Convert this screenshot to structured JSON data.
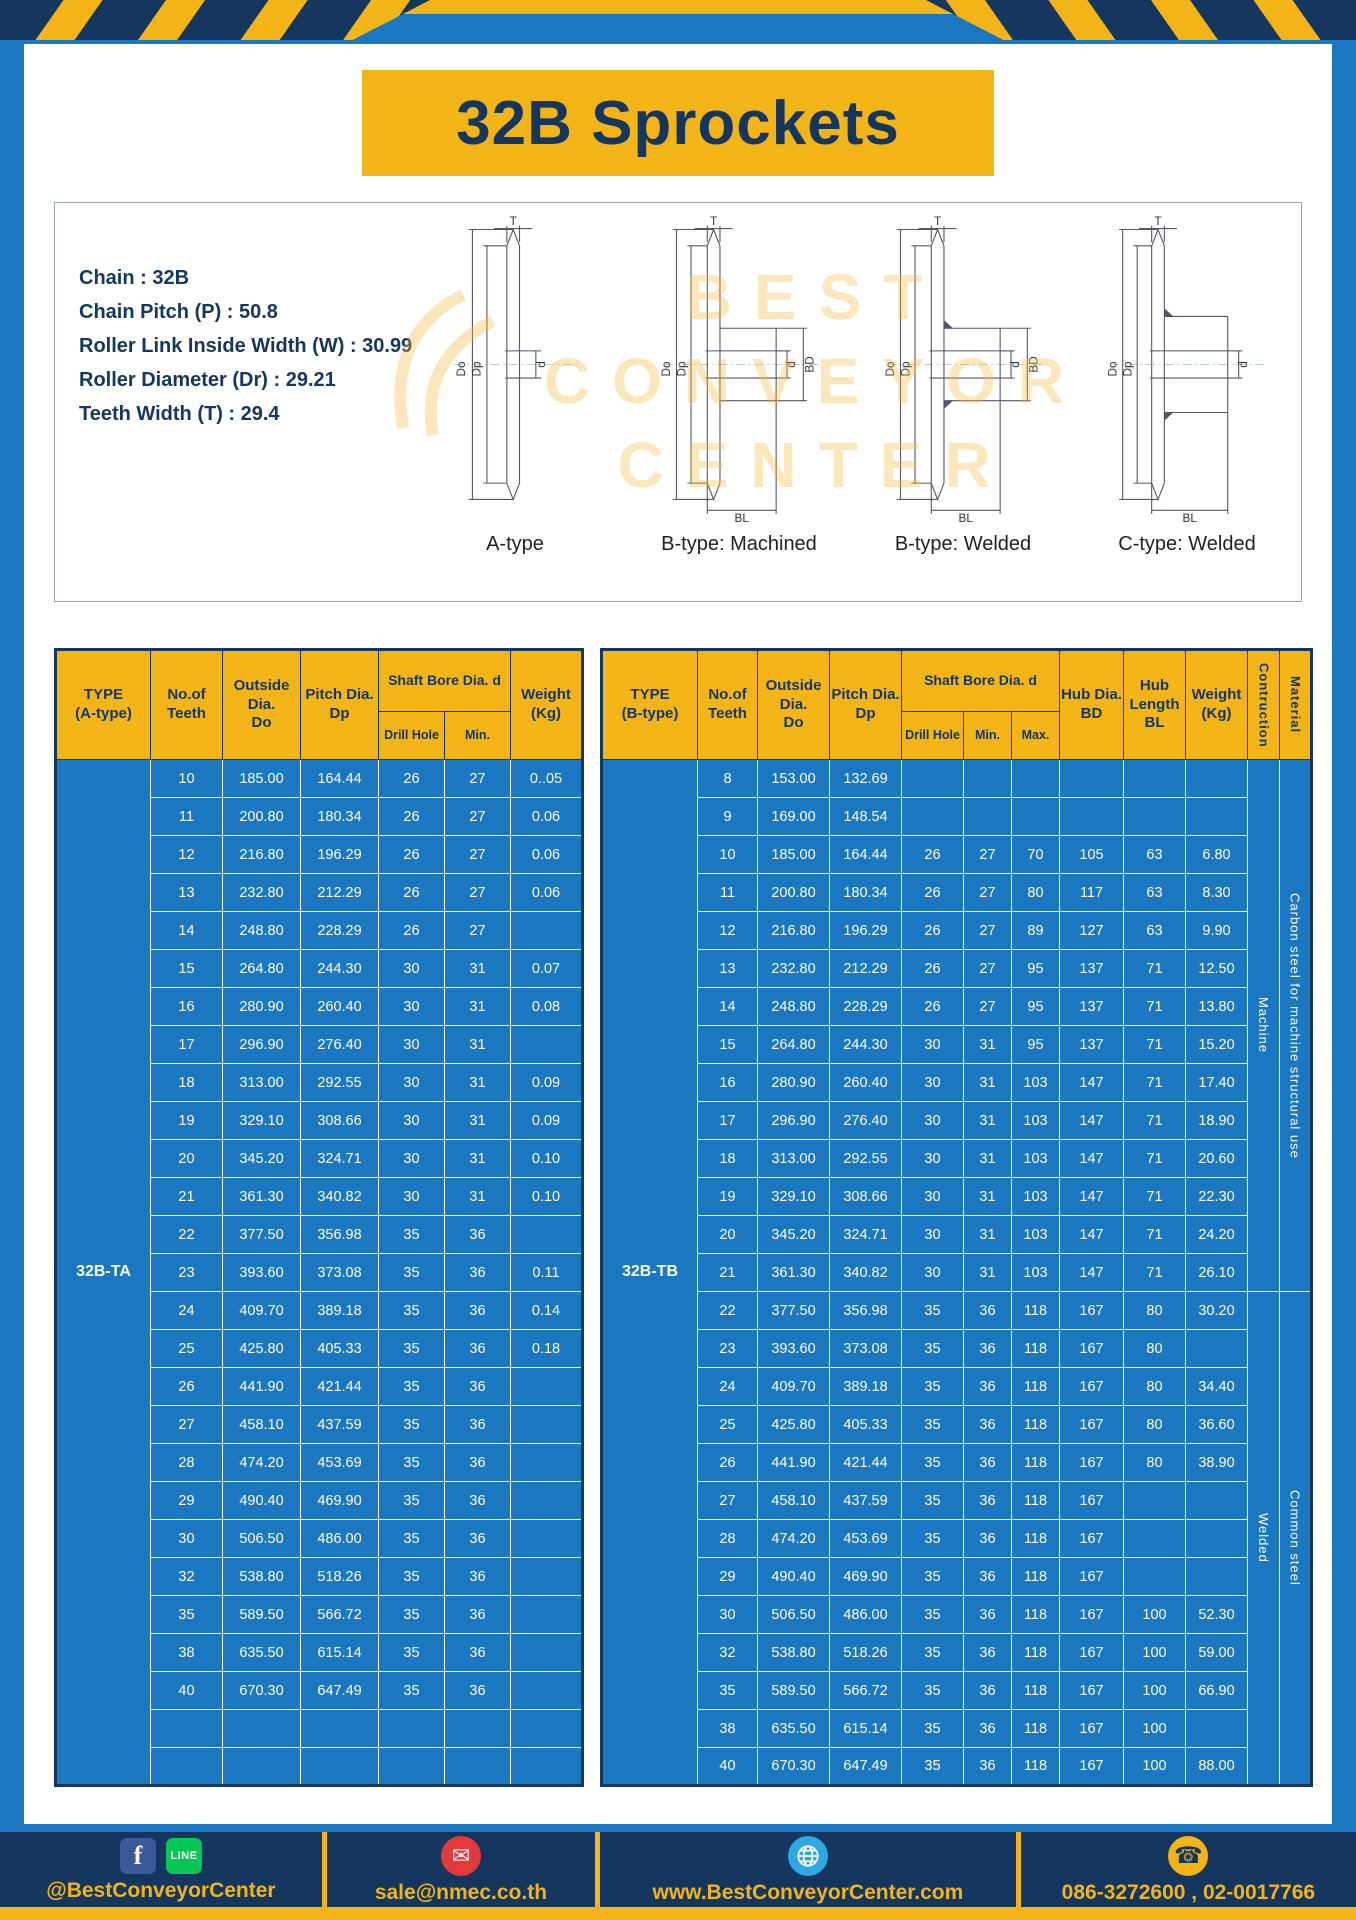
{
  "colors": {
    "yellow": "#F2B417",
    "navy": "#14365F",
    "blue": "#1B77C0"
  },
  "page": {
    "title": "32B Sprockets"
  },
  "specs": {
    "lines": [
      "Chain : 32B",
      "Chain Pitch (P) : 50.8",
      "Roller Link Inside Width (W) : 30.99",
      "Roller Diameter (Dr) : 29.21",
      "Teeth Width (T) : 29.4"
    ]
  },
  "watermark": {
    "lines": [
      "BEST",
      "CONVEYOR",
      "CENTER"
    ]
  },
  "diagrams": {
    "captions": [
      "A-type",
      "B-type: Machined",
      "B-type: Welded",
      "C-type: Welded"
    ],
    "dims": {
      "t": "T",
      "do": "Do",
      "dp": "Dp",
      "d": "d",
      "bd": "BD",
      "bl": "BL"
    }
  },
  "left_table": {
    "type_label": "32B-TA",
    "headers": {
      "type": "TYPE\n(A-type)",
      "teeth": "No.of\nTeeth",
      "outside": "Outside\nDia.\nDo",
      "pitch": "Pitch Dia.\nDp",
      "shaft": "Shaft Bore Dia. d",
      "drill": "Drill Hole",
      "min": "Min.",
      "weight": "Weight\n(Kg)"
    },
    "rows": [
      [
        "10",
        "185.00",
        "164.44",
        "26",
        "27",
        "0..05"
      ],
      [
        "11",
        "200.80",
        "180.34",
        "26",
        "27",
        "0.06"
      ],
      [
        "12",
        "216.80",
        "196.29",
        "26",
        "27",
        "0.06"
      ],
      [
        "13",
        "232.80",
        "212.29",
        "26",
        "27",
        "0.06"
      ],
      [
        "14",
        "248.80",
        "228.29",
        "26",
        "27",
        ""
      ],
      [
        "15",
        "264.80",
        "244.30",
        "30",
        "31",
        "0.07"
      ],
      [
        "16",
        "280.90",
        "260.40",
        "30",
        "31",
        "0.08"
      ],
      [
        "17",
        "296.90",
        "276.40",
        "30",
        "31",
        ""
      ],
      [
        "18",
        "313.00",
        "292.55",
        "30",
        "31",
        "0.09"
      ],
      [
        "19",
        "329.10",
        "308.66",
        "30",
        "31",
        "0.09"
      ],
      [
        "20",
        "345.20",
        "324.71",
        "30",
        "31",
        "0.10"
      ],
      [
        "21",
        "361.30",
        "340.82",
        "30",
        "31",
        "0.10"
      ],
      [
        "22",
        "377.50",
        "356.98",
        "35",
        "36",
        ""
      ],
      [
        "23",
        "393.60",
        "373.08",
        "35",
        "36",
        "0.11"
      ],
      [
        "24",
        "409.70",
        "389.18",
        "35",
        "36",
        "0.14"
      ],
      [
        "25",
        "425.80",
        "405.33",
        "35",
        "36",
        "0.18"
      ],
      [
        "26",
        "441.90",
        "421.44",
        "35",
        "36",
        ""
      ],
      [
        "27",
        "458.10",
        "437.59",
        "35",
        "36",
        ""
      ],
      [
        "28",
        "474.20",
        "453.69",
        "35",
        "36",
        ""
      ],
      [
        "29",
        "490.40",
        "469.90",
        "35",
        "36",
        ""
      ],
      [
        "30",
        "506.50",
        "486.00",
        "35",
        "36",
        ""
      ],
      [
        "32",
        "538.80",
        "518.26",
        "35",
        "36",
        ""
      ],
      [
        "35",
        "589.50",
        "566.72",
        "35",
        "36",
        ""
      ],
      [
        "38",
        "635.50",
        "615.14",
        "35",
        "36",
        ""
      ],
      [
        "40",
        "670.30",
        "647.49",
        "35",
        "36",
        ""
      ],
      [
        "",
        "",
        "",
        "",
        "",
        ""
      ],
      [
        "",
        "",
        "",
        "",
        "",
        ""
      ]
    ]
  },
  "right_table": {
    "type_label": "32B-TB",
    "headers": {
      "type": "TYPE\n(B-type)",
      "teeth": "No.of\nTeeth",
      "outside": "Outside\nDia.\nDo",
      "pitch": "Pitch Dia.\nDp",
      "shaft": "Shaft Bore Dia. d",
      "drill": "Drill Hole",
      "min": "Min.",
      "max": "Max.",
      "hub_dia": "Hub Dia.\nBD",
      "hub_len": "Hub\nLength\nBL",
      "weight": "Weight\n(Kg)",
      "construction": "Contruction",
      "material": "Material"
    },
    "construction_spans": [
      {
        "label": "Machine",
        "rows": 14
      },
      {
        "label": "Welded",
        "rows": 13
      }
    ],
    "material_spans": [
      {
        "label": "Carbon steel for machine structural use",
        "rows": 14
      },
      {
        "label": "Common steel",
        "rows": 13
      }
    ],
    "rows": [
      [
        "8",
        "153.00",
        "132.69",
        "",
        "",
        "",
        "",
        "",
        ""
      ],
      [
        "9",
        "169.00",
        "148.54",
        "",
        "",
        "",
        "",
        "",
        ""
      ],
      [
        "10",
        "185.00",
        "164.44",
        "26",
        "27",
        "70",
        "105",
        "63",
        "6.80"
      ],
      [
        "11",
        "200.80",
        "180.34",
        "26",
        "27",
        "80",
        "117",
        "63",
        "8.30"
      ],
      [
        "12",
        "216.80",
        "196.29",
        "26",
        "27",
        "89",
        "127",
        "63",
        "9.90"
      ],
      [
        "13",
        "232.80",
        "212.29",
        "26",
        "27",
        "95",
        "137",
        "71",
        "12.50"
      ],
      [
        "14",
        "248.80",
        "228.29",
        "26",
        "27",
        "95",
        "137",
        "71",
        "13.80"
      ],
      [
        "15",
        "264.80",
        "244.30",
        "30",
        "31",
        "95",
        "137",
        "71",
        "15.20"
      ],
      [
        "16",
        "280.90",
        "260.40",
        "30",
        "31",
        "103",
        "147",
        "71",
        "17.40"
      ],
      [
        "17",
        "296.90",
        "276.40",
        "30",
        "31",
        "103",
        "147",
        "71",
        "18.90"
      ],
      [
        "18",
        "313.00",
        "292.55",
        "30",
        "31",
        "103",
        "147",
        "71",
        "20.60"
      ],
      [
        "19",
        "329.10",
        "308.66",
        "30",
        "31",
        "103",
        "147",
        "71",
        "22.30"
      ],
      [
        "20",
        "345.20",
        "324.71",
        "30",
        "31",
        "103",
        "147",
        "71",
        "24.20"
      ],
      [
        "21",
        "361.30",
        "340.82",
        "30",
        "31",
        "103",
        "147",
        "71",
        "26.10"
      ],
      [
        "22",
        "377.50",
        "356.98",
        "35",
        "36",
        "118",
        "167",
        "80",
        "30.20"
      ],
      [
        "23",
        "393.60",
        "373.08",
        "35",
        "36",
        "118",
        "167",
        "80",
        ""
      ],
      [
        "24",
        "409.70",
        "389.18",
        "35",
        "36",
        "118",
        "167",
        "80",
        "34.40"
      ],
      [
        "25",
        "425.80",
        "405.33",
        "35",
        "36",
        "118",
        "167",
        "80",
        "36.60"
      ],
      [
        "26",
        "441.90",
        "421.44",
        "35",
        "36",
        "118",
        "167",
        "80",
        "38.90"
      ],
      [
        "27",
        "458.10",
        "437.59",
        "35",
        "36",
        "118",
        "167",
        "",
        ""
      ],
      [
        "28",
        "474.20",
        "453.69",
        "35",
        "36",
        "118",
        "167",
        "",
        ""
      ],
      [
        "29",
        "490.40",
        "469.90",
        "35",
        "36",
        "118",
        "167",
        "",
        ""
      ],
      [
        "30",
        "506.50",
        "486.00",
        "35",
        "36",
        "118",
        "167",
        "100",
        "52.30"
      ],
      [
        "32",
        "538.80",
        "518.26",
        "35",
        "36",
        "118",
        "167",
        "100",
        "59.00"
      ],
      [
        "35",
        "589.50",
        "566.72",
        "35",
        "36",
        "118",
        "167",
        "100",
        "66.90"
      ],
      [
        "38",
        "635.50",
        "615.14",
        "35",
        "36",
        "118",
        "167",
        "100",
        ""
      ],
      [
        "40",
        "670.30",
        "647.49",
        "35",
        "36",
        "118",
        "167",
        "100",
        "88.00"
      ]
    ]
  },
  "footer": {
    "fb_letter": "f",
    "line_text": "LINE",
    "facebook": "@BestConveyorCenter",
    "email": "sale@nmec.co.th",
    "website": "www.BestConveyorCenter.com",
    "phone": "086-3272600 , 02-0017766",
    "mail_glyph": "✉",
    "phone_glyph": "☎"
  }
}
